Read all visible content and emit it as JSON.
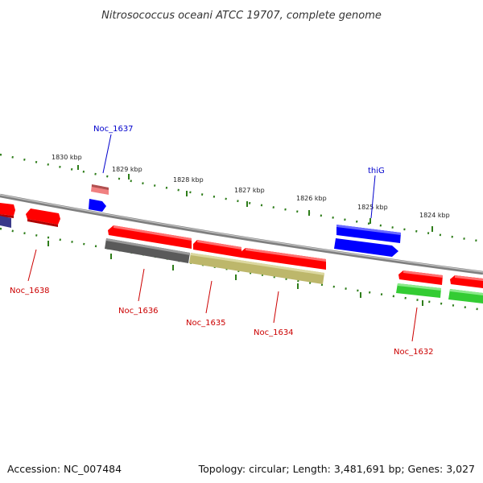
{
  "title": "Nitrosococcus oceani ATCC 19707, complete genome",
  "footer": {
    "accession": "Accession: NC_007484",
    "topology": "Topology: circular; Length: 3,481,691 bp; Genes: 3,027"
  },
  "colors": {
    "backbone": "#8c8c8c",
    "tick": "#2e7d1a",
    "label_forward": "#0000cc",
    "label_reverse": "#cc0000",
    "red": "#ff0000",
    "pink": "#f08080",
    "blue": "#0000ff",
    "gray": "#5a5a5a",
    "olive": "#bdb76b",
    "green": "#33cc33",
    "navy": "#3a3a8a"
  },
  "ticks": [
    {
      "label": "1830 kbp"
    },
    {
      "label": "1829 kbp"
    },
    {
      "label": "1828 kbp"
    },
    {
      "label": "1827 kbp"
    },
    {
      "label": "1826 kbp"
    },
    {
      "label": "1825 kbp"
    },
    {
      "label": "1824 kbp"
    }
  ],
  "gene_labels": [
    {
      "text": "Noc_1637",
      "strand": "forward"
    },
    {
      "text": "thiG",
      "strand": "forward"
    },
    {
      "text": "Noc_1638",
      "strand": "reverse"
    },
    {
      "text": "Noc_1636",
      "strand": "reverse"
    },
    {
      "text": "Noc_1635",
      "strand": "reverse"
    },
    {
      "text": "Noc_1634",
      "strand": "reverse"
    },
    {
      "text": "Noc_1632",
      "strand": "reverse"
    }
  ]
}
